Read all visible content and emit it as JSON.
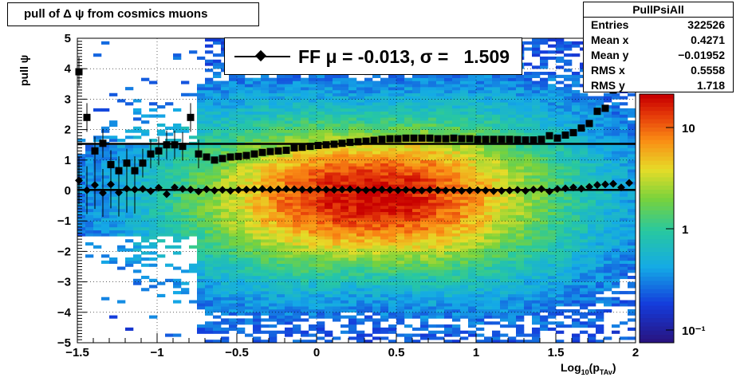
{
  "title": "pull of Δ ψ from cosmics muons",
  "stats": {
    "name": "PullPsiAll",
    "rows": [
      {
        "label": "Entries",
        "value": "322526"
      },
      {
        "label": "Mean x",
        "value": "0.4271"
      },
      {
        "label": "Mean y",
        "value": "−0.01952"
      },
      {
        "label": "RMS x",
        "value": "0.5558"
      },
      {
        "label": "RMS y",
        "value": "1.718"
      }
    ]
  },
  "legend": {
    "text": "FF μ = -0.013, σ =   1.509"
  },
  "colors": {
    "accent_hot": "#d10000",
    "accent_cold": "#1e1e9b",
    "marker": "#000000"
  },
  "chart_data": {
    "type": "heatmap",
    "title": "pull of Δ ψ from cosmics muons",
    "xlabel": "Log10(pTAv)",
    "ylabel": "pull ψ",
    "xlim": [
      -1.5,
      2
    ],
    "ylim": [
      -5,
      5
    ],
    "xticks": [
      "−1.5",
      "−1",
      "−0.5",
      "0",
      "0.5",
      "1",
      "1.5",
      "2"
    ],
    "yticks": [
      "−5",
      "−4",
      "−3",
      "−2",
      "−1",
      "0",
      "1",
      "2",
      "3",
      "4",
      "5"
    ],
    "zscale": "log",
    "zticks": [
      "10⁻¹",
      "1",
      "10"
    ],
    "grid": true,
    "legend_position": "top-center",
    "fit_sigma_line": 1.53,
    "series": [
      {
        "name": "mean",
        "x": [
          -1.49,
          -1.44,
          -1.39,
          -1.34,
          -1.29,
          -1.24,
          -1.19,
          -1.14,
          -1.09,
          -1.04,
          -0.99,
          -0.94,
          -0.89,
          -0.84,
          -0.79,
          -0.74,
          -0.69,
          -0.64,
          -0.59,
          -0.54,
          -0.49,
          -0.44,
          -0.39,
          -0.34,
          -0.29,
          -0.24,
          -0.19,
          -0.14,
          -0.09,
          -0.04,
          0.01,
          0.06,
          0.11,
          0.16,
          0.21,
          0.26,
          0.31,
          0.36,
          0.41,
          0.46,
          0.51,
          0.56,
          0.61,
          0.66,
          0.71,
          0.76,
          0.81,
          0.86,
          0.91,
          0.96,
          1.01,
          1.06,
          1.11,
          1.16,
          1.21,
          1.26,
          1.31,
          1.36,
          1.41,
          1.46,
          1.51,
          1.56,
          1.61,
          1.66,
          1.71,
          1.76,
          1.81,
          1.86,
          1.91,
          1.96
        ],
        "values": [
          0.33,
          0.01,
          0.18,
          -0.08,
          0.2,
          -0.07,
          0.06,
          0.03,
          0.05,
          -0.02,
          0.09,
          -0.12,
          0.1,
          0.05,
          0.03,
          -0.03,
          0.04,
          0.0,
          0.02,
          -0.01,
          0.02,
          0.03,
          0.04,
          0.05,
          0.03,
          0.04,
          0.05,
          0.04,
          0.03,
          0.02,
          0.04,
          0.03,
          0.02,
          0.03,
          0.04,
          0.02,
          0.01,
          0.02,
          0.03,
          0.02,
          0.01,
          0.02,
          0.01,
          0.0,
          0.02,
          0.01,
          0.0,
          0.01,
          -0.01,
          0.0,
          0.01,
          0.0,
          -0.02,
          -0.01,
          0.0,
          0.02,
          -0.01,
          0.03,
          0.05,
          -0.03,
          0.05,
          0.07,
          0.1,
          0.06,
          0.12,
          0.18,
          0.2,
          0.22,
          0.1,
          0.25
        ]
      },
      {
        "name": "sigma",
        "x": [
          -1.49,
          -1.44,
          -1.39,
          -1.34,
          -1.29,
          -1.24,
          -1.19,
          -1.14,
          -1.09,
          -1.04,
          -0.99,
          -0.94,
          -0.89,
          -0.84,
          -0.79,
          -0.74,
          -0.69,
          -0.64,
          -0.59,
          -0.54,
          -0.49,
          -0.44,
          -0.39,
          -0.34,
          -0.29,
          -0.24,
          -0.19,
          -0.14,
          -0.09,
          -0.04,
          0.01,
          0.06,
          0.11,
          0.16,
          0.21,
          0.26,
          0.31,
          0.36,
          0.41,
          0.46,
          0.51,
          0.56,
          0.61,
          0.66,
          0.71,
          0.76,
          0.81,
          0.86,
          0.91,
          0.96,
          1.01,
          1.06,
          1.11,
          1.16,
          1.21,
          1.26,
          1.31,
          1.36,
          1.41,
          1.46,
          1.51,
          1.56,
          1.61,
          1.66,
          1.71,
          1.76,
          1.81,
          1.86,
          1.91,
          1.96
        ],
        "values": [
          3.9,
          2.4,
          1.3,
          1.55,
          0.85,
          0.65,
          0.9,
          0.65,
          0.9,
          1.2,
          1.3,
          1.5,
          1.5,
          1.45,
          2.4,
          1.2,
          1.1,
          1.0,
          1.05,
          1.1,
          1.12,
          1.15,
          1.2,
          1.25,
          1.28,
          1.3,
          1.32,
          1.4,
          1.42,
          1.45,
          1.48,
          1.5,
          1.52,
          1.55,
          1.58,
          1.6,
          1.62,
          1.65,
          1.68,
          1.7,
          1.7,
          1.72,
          1.72,
          1.72,
          1.72,
          1.7,
          1.7,
          1.72,
          1.7,
          1.7,
          1.68,
          1.68,
          1.68,
          1.68,
          1.68,
          1.67,
          1.66,
          1.66,
          1.68,
          1.8,
          1.72,
          1.82,
          1.9,
          2.05,
          2.2,
          2.6,
          2.7,
          3.3,
          3.55,
          3.75
        ]
      }
    ]
  }
}
